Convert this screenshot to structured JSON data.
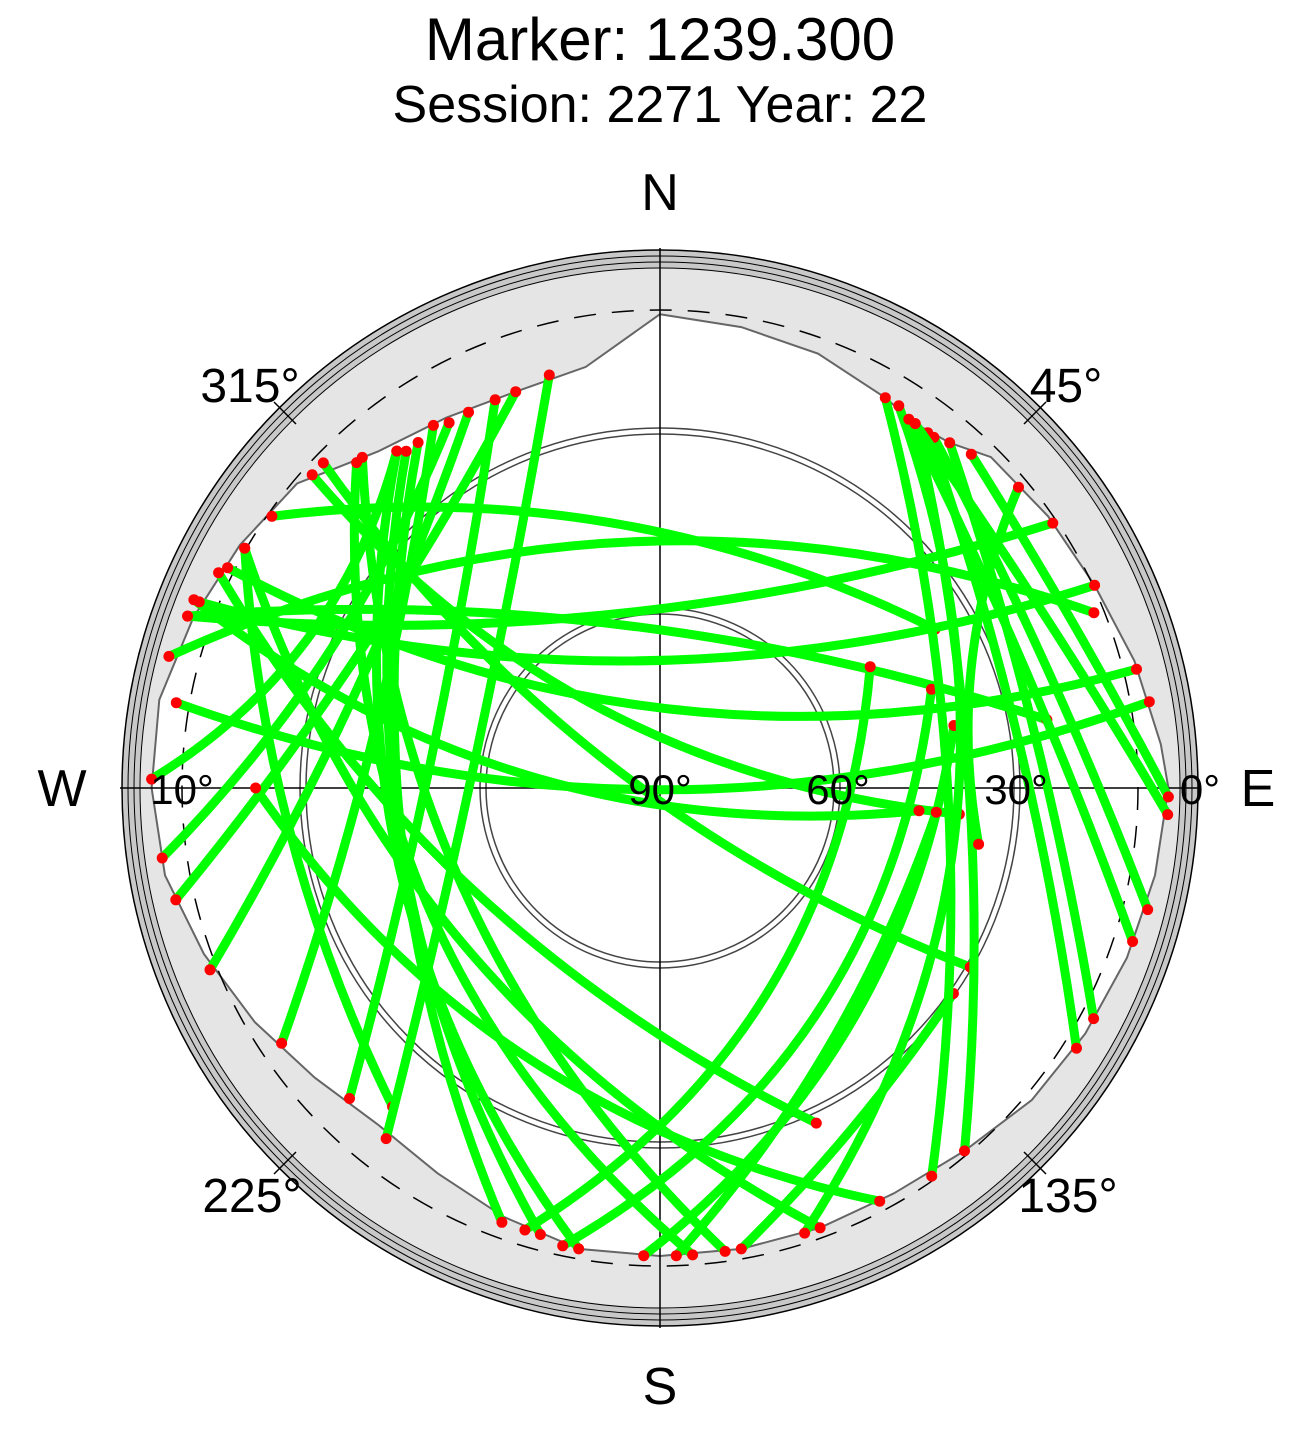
{
  "chart_data": {
    "type": "polar-skyplot",
    "title": "Marker: 1239.300",
    "subtitle": "Session: 2271 Year: 22",
    "cardinals": [
      "N",
      "E",
      "S",
      "W"
    ],
    "azimuth_labels": [
      "45°",
      "135°",
      "225°",
      "315°"
    ],
    "elevation_labels": [
      "0°",
      "10°",
      "30°",
      "60°",
      "90°"
    ],
    "elevation_cutoff_deg": 10,
    "colors": {
      "track": "#00ff00",
      "track_end": "#ff0000",
      "horizon_mask": "#e5e5e5",
      "outer_ring": "#c8c8c8",
      "axes": "#000000"
    },
    "horizon_mask_elevation_deg": [
      {
        "az": 0,
        "el": 8
      },
      {
        "az": 10,
        "el": 9
      },
      {
        "az": 20,
        "el": 10
      },
      {
        "az": 30,
        "el": 12
      },
      {
        "az": 35,
        "el": 13
      },
      {
        "az": 40,
        "el": 12
      },
      {
        "az": 45,
        "el": 9
      },
      {
        "az": 55,
        "el": 8
      },
      {
        "az": 65,
        "el": 7
      },
      {
        "az": 75,
        "el": 5
      },
      {
        "az": 85,
        "el": 3
      },
      {
        "az": 90,
        "el": 2
      },
      {
        "az": 100,
        "el": 3
      },
      {
        "az": 110,
        "el": 4
      },
      {
        "az": 120,
        "el": 5
      },
      {
        "az": 130,
        "el": 6
      },
      {
        "az": 140,
        "el": 8
      },
      {
        "az": 150,
        "el": 9
      },
      {
        "az": 160,
        "el": 9
      },
      {
        "az": 170,
        "el": 9
      },
      {
        "az": 180,
        "el": 9
      },
      {
        "az": 190,
        "el": 9
      },
      {
        "az": 200,
        "el": 11
      },
      {
        "az": 210,
        "el": 13
      },
      {
        "az": 220,
        "el": 14
      },
      {
        "az": 230,
        "el": 12
      },
      {
        "az": 240,
        "el": 9
      },
      {
        "az": 250,
        "el": 6
      },
      {
        "az": 260,
        "el": 3
      },
      {
        "az": 270,
        "el": 2
      },
      {
        "az": 280,
        "el": 2
      },
      {
        "az": 290,
        "el": 4
      },
      {
        "az": 300,
        "el": 6
      },
      {
        "az": 310,
        "el": 8
      },
      {
        "az": 320,
        "el": 14
      },
      {
        "az": 330,
        "el": 16
      },
      {
        "az": 340,
        "el": 17
      },
      {
        "az": 350,
        "el": 16
      },
      {
        "az": 360,
        "el": 8
      }
    ],
    "tracks": [
      {
        "az1": 322,
        "el1": 16,
        "az2": 190,
        "el2": 9,
        "bulge": 0.22
      },
      {
        "az1": 323,
        "el1": 17,
        "az2": 195,
        "el2": 10,
        "bulge": 0.18
      },
      {
        "az1": 325,
        "el1": 17,
        "az2": 200,
        "el2": 10,
        "bulge": 0.15
      },
      {
        "az1": 318,
        "el1": 13,
        "az2": 172,
        "el2": 9,
        "bulge": 0.2
      },
      {
        "az1": 317,
        "el1": 13,
        "az2": 176,
        "el2": 9,
        "bulge": 0.25
      },
      {
        "az1": 314,
        "el1": 9,
        "az2": 120,
        "el2": 28,
        "bulge": 0.15
      },
      {
        "az1": 312,
        "el1": 9,
        "az2": 95,
        "el2": 38,
        "bulge": 0.2
      },
      {
        "az1": 305,
        "el1": 8,
        "az2": 60,
        "el2": 35,
        "bulge": -0.15
      },
      {
        "az1": 300,
        "el1": 7,
        "az2": 220,
        "el2": 18,
        "bulge": 0.1
      },
      {
        "az1": 296,
        "el1": 5,
        "az2": 155,
        "el2": 26,
        "bulge": 0.15
      },
      {
        "az1": 292,
        "el1": 3,
        "az2": 95,
        "el2": 45,
        "bulge": 0.2
      },
      {
        "az1": 290,
        "el1": 3,
        "az2": 80,
        "el2": 22,
        "bulge": -0.1
      },
      {
        "az1": 285,
        "el1": 2,
        "az2": 68,
        "el2": 9,
        "bulge": -0.2
      },
      {
        "az1": 271,
        "el1": 2,
        "az2": 322,
        "el2": 16,
        "bulge": 0.2
      },
      {
        "az1": 262,
        "el1": 3,
        "az2": 330,
        "el2": 17,
        "bulge": 0.1
      },
      {
        "az1": 257,
        "el1": 4,
        "az2": 340,
        "el2": 17,
        "bulge": 0.05
      },
      {
        "az1": 248,
        "el1": 6,
        "az2": 333,
        "el2": 17,
        "bulge": 0.05
      },
      {
        "az1": 236,
        "el1": 11,
        "az2": 328,
        "el2": 16,
        "bulge": 0.05
      },
      {
        "az1": 225,
        "el1": 14,
        "az2": 337,
        "el2": 17,
        "bulge": 0.03
      },
      {
        "az1": 218,
        "el1": 13,
        "az2": 345,
        "el2": 16,
        "bulge": 0.02
      },
      {
        "az1": 197,
        "el1": 10,
        "az2": 60,
        "el2": 48,
        "bulge": 0.25
      },
      {
        "az1": 192,
        "el1": 9,
        "az2": 70,
        "el2": 40,
        "bulge": 0.25
      },
      {
        "az1": 182,
        "el1": 9,
        "az2": 78,
        "el2": 38,
        "bulge": 0.2
      },
      {
        "az1": 178,
        "el1": 9,
        "az2": 95,
        "el2": 42,
        "bulge": 0.1
      },
      {
        "az1": 170,
        "el1": 9,
        "az2": 125,
        "el2": 28,
        "bulge": 0.05
      },
      {
        "az1": 162,
        "el1": 9,
        "az2": 32,
        "el2": 12,
        "bulge": 0.25
      },
      {
        "az1": 160,
        "el1": 9,
        "az2": 300,
        "el2": 7,
        "bulge": -0.2
      },
      {
        "az1": 152,
        "el1": 9,
        "az2": 270,
        "el2": 20,
        "bulge": -0.2
      },
      {
        "az1": 145,
        "el1": 8,
        "az2": 30,
        "el2": 12,
        "bulge": 0.1
      },
      {
        "az1": 140,
        "el1": 8,
        "az2": 35,
        "el2": 13,
        "bulge": 0.08
      },
      {
        "az1": 122,
        "el1": 5,
        "az2": 37,
        "el2": 13,
        "bulge": 0.05
      },
      {
        "az1": 118,
        "el1": 5,
        "az2": 40,
        "el2": 12,
        "bulge": 0.04
      },
      {
        "az1": 108,
        "el1": 4,
        "az2": 34,
        "el2": 13,
        "bulge": 0.03
      },
      {
        "az1": 104,
        "el1": 3,
        "az2": 38,
        "el2": 13,
        "bulge": 0.03
      },
      {
        "az1": 93,
        "el1": 2,
        "az2": 35,
        "el2": 13,
        "bulge": 0.02
      },
      {
        "az1": 91,
        "el1": 2,
        "az2": 43,
        "el2": 11,
        "bulge": 0.02
      },
      {
        "az1": 80,
        "el1": 4,
        "az2": 280,
        "el2": 5,
        "bulge": -0.18
      },
      {
        "az1": 76,
        "el1": 5,
        "az2": 297,
        "el2": 6,
        "bulge": -0.2
      },
      {
        "az1": 65,
        "el1": 7,
        "az2": 292,
        "el2": 4,
        "bulge": -0.15
      },
      {
        "az1": 56,
        "el1": 8,
        "az2": 290,
        "el2": 3,
        "bulge": -0.1
      },
      {
        "az1": 50,
        "el1": 9,
        "az2": 100,
        "el2": 34,
        "bulge": 0.15
      }
    ]
  }
}
